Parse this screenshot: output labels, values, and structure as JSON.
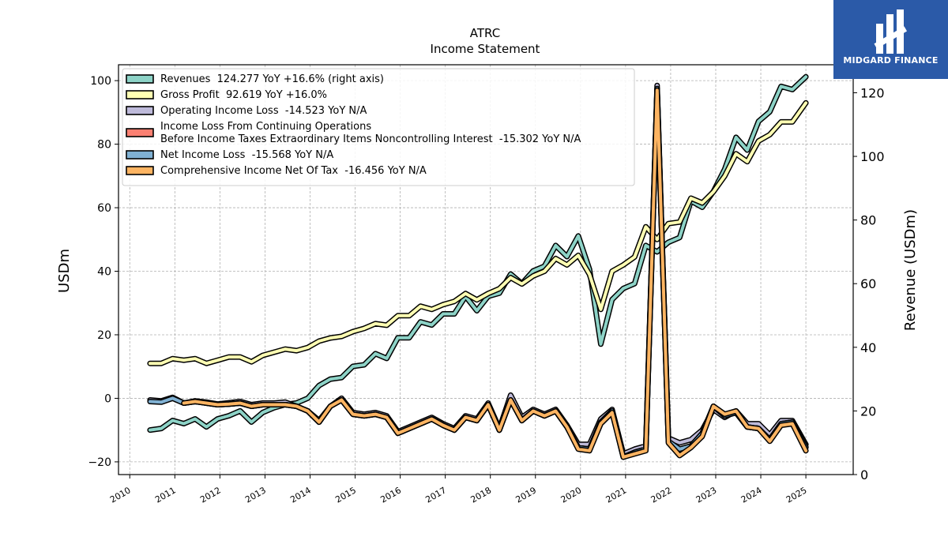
{
  "logo": {
    "text": "MIDGARD FINANCE",
    "color": "#2b5aa8"
  },
  "chart_data": {
    "type": "line",
    "title": "ATRC",
    "subtitle": "Income Statement",
    "ylabel": "USDm",
    "y2label": "Revenue (USDm)",
    "ylim": [
      -24,
      105
    ],
    "y2lim": [
      0,
      128.8
    ],
    "yticks": [
      -20,
      0,
      20,
      40,
      60,
      80,
      100
    ],
    "y2ticks": [
      0,
      20,
      40,
      60,
      80,
      100,
      120
    ],
    "xlim": [
      2009.75,
      2026.05
    ],
    "xticks": [
      2010,
      2011,
      2012,
      2013,
      2014,
      2015,
      2016,
      2017,
      2018,
      2019,
      2020,
      2021,
      2022,
      2023,
      2024,
      2025
    ],
    "xtick_labels": [
      "2010",
      "2011",
      "2012",
      "2013",
      "2014",
      "2015",
      "2016",
      "2017",
      "2018",
      "2019",
      "2020",
      "2021",
      "2022",
      "2023",
      "2024",
      "2025"
    ],
    "grid": true,
    "legend_position": "top-left",
    "series": [
      {
        "name": "Revenues  124.277 YoY +16.6% (right axis)",
        "axis": "right",
        "color": "#8dd3c7",
        "x": [
          2010.45,
          2010.7,
          2010.95,
          2011.2,
          2011.45,
          2011.7,
          2011.95,
          2012.2,
          2012.45,
          2012.7,
          2012.95,
          2013.2,
          2013.45,
          2013.7,
          2013.95,
          2014.2,
          2014.45,
          2014.7,
          2014.95,
          2015.2,
          2015.45,
          2015.7,
          2015.95,
          2016.2,
          2016.45,
          2016.7,
          2016.95,
          2017.2,
          2017.45,
          2017.7,
          2017.95,
          2018.2,
          2018.45,
          2018.7,
          2018.95,
          2019.2,
          2019.45,
          2019.7,
          2019.95,
          2020.2,
          2020.45,
          2020.7,
          2020.95,
          2021.2,
          2021.45,
          2021.7,
          2021.95,
          2022.2,
          2022.45,
          2022.7,
          2022.95,
          2023.2,
          2023.45,
          2023.7,
          2023.95,
          2024.2,
          2024.45,
          2024.7,
          2025.0
        ],
        "values": [
          14,
          14.5,
          17,
          16,
          17.5,
          15,
          17.5,
          18.5,
          20,
          16.5,
          19.5,
          21,
          22,
          22.5,
          24,
          28,
          30,
          30.5,
          34,
          34.5,
          38,
          36.5,
          43,
          43,
          48,
          47,
          50.5,
          50.5,
          56,
          51.5,
          56,
          57,
          63,
          60,
          64,
          65.5,
          72,
          68.5,
          75,
          64.5,
          41,
          55,
          58.5,
          60,
          72,
          70,
          73,
          74.5,
          86,
          84,
          89,
          96,
          106,
          102,
          111,
          114,
          122,
          121,
          125
        ]
      },
      {
        "name": "Gross Profit  92.619 YoY +16.0%",
        "axis": "left",
        "color": "#ffffb3",
        "x": [
          2010.45,
          2010.7,
          2010.95,
          2011.2,
          2011.45,
          2011.7,
          2011.95,
          2012.2,
          2012.45,
          2012.7,
          2012.95,
          2013.2,
          2013.45,
          2013.7,
          2013.95,
          2014.2,
          2014.45,
          2014.7,
          2014.95,
          2015.2,
          2015.45,
          2015.7,
          2015.95,
          2016.2,
          2016.45,
          2016.7,
          2016.95,
          2017.2,
          2017.45,
          2017.7,
          2017.95,
          2018.2,
          2018.45,
          2018.7,
          2018.95,
          2019.2,
          2019.45,
          2019.7,
          2019.95,
          2020.2,
          2020.45,
          2020.7,
          2020.95,
          2021.2,
          2021.45,
          2021.7,
          2021.95,
          2022.2,
          2022.45,
          2022.7,
          2022.95,
          2023.2,
          2023.45,
          2023.7,
          2023.95,
          2024.2,
          2024.45,
          2024.7,
          2025.0
        ],
        "values": [
          11,
          11,
          12.5,
          12,
          12.5,
          11,
          12,
          13,
          13,
          11.5,
          13.5,
          14.5,
          15.5,
          15,
          16,
          18,
          19,
          19.5,
          21,
          22,
          23.5,
          23,
          26,
          26,
          29,
          28,
          29.5,
          30.5,
          33,
          31,
          33,
          34.5,
          38,
          36,
          38.5,
          40,
          44,
          42,
          45,
          39,
          28,
          40,
          42,
          44.5,
          54,
          50,
          55,
          55.5,
          63,
          61.5,
          65,
          70,
          77,
          74.5,
          81,
          83,
          87,
          87,
          93
        ]
      },
      {
        "name": "Operating Income Loss  -14.523 YoY N/A",
        "axis": "left",
        "color": "#bebada",
        "x": [
          2010.45,
          2010.7,
          2010.95,
          2011.2,
          2011.45,
          2011.7,
          2011.95,
          2012.2,
          2012.45,
          2012.7,
          2012.95,
          2013.2,
          2013.45,
          2013.7,
          2013.95,
          2014.2,
          2014.45,
          2014.7,
          2014.95,
          2015.2,
          2015.45,
          2015.7,
          2015.95,
          2016.2,
          2016.45,
          2016.7,
          2016.95,
          2017.2,
          2017.45,
          2017.7,
          2017.95,
          2018.2,
          2018.45,
          2018.7,
          2018.95,
          2019.2,
          2019.45,
          2019.7,
          2019.95,
          2020.2,
          2020.45,
          2020.7,
          2020.95,
          2021.2,
          2021.45,
          2021.7,
          2021.95,
          2022.2,
          2022.45,
          2022.7,
          2022.95,
          2023.2,
          2023.45,
          2023.7,
          2023.95,
          2024.2,
          2024.45,
          2024.7,
          2025.0
        ],
        "values": [
          -0.5,
          -0.8,
          0.3,
          -1.5,
          -0.8,
          -1.2,
          -1.8,
          -1.4,
          -1,
          -2,
          -1.5,
          -1.5,
          -1.2,
          -2.5,
          -4,
          -7,
          -2.5,
          0,
          -4.5,
          -5,
          -4.5,
          -5.5,
          -10.5,
          -9,
          -7.5,
          -6,
          -8,
          -9.5,
          -5.5,
          -6.5,
          -1.5,
          -9.5,
          1,
          -6,
          -3.5,
          -5,
          -3.5,
          -8.5,
          -14.5,
          -14.5,
          -6.5,
          -3.5,
          -17.5,
          -16,
          -15,
          98.5,
          -12.5,
          -14,
          -13,
          -10,
          -3.5,
          -6,
          -4,
          -8,
          -8,
          -11.5,
          -7,
          -7,
          -14.5
        ]
      },
      {
        "name": "Income Loss From Continuing Operations\nBefore Income Taxes Extraordinary Items Noncontrolling Interest  -15.302 YoY N/A",
        "axis": "left",
        "color": "#fb8072",
        "x": [
          2011.2,
          2011.45,
          2011.7,
          2011.95,
          2012.2,
          2012.45,
          2012.7,
          2012.95,
          2013.2,
          2013.45,
          2013.7,
          2013.95,
          2014.2,
          2014.45,
          2014.7,
          2014.95,
          2015.2,
          2015.45,
          2015.7,
          2015.95,
          2016.2,
          2016.45,
          2016.7,
          2016.95,
          2017.2,
          2017.45,
          2017.7,
          2017.95,
          2018.2,
          2018.45,
          2018.7,
          2018.95,
          2019.2,
          2019.45,
          2019.7,
          2019.95,
          2020.2,
          2020.45,
          2020.7,
          2020.95,
          2021.2,
          2021.45,
          2021.7,
          2021.95,
          2022.2,
          2022.45,
          2022.7,
          2022.95,
          2023.2,
          2023.45,
          2023.7,
          2023.95,
          2024.2,
          2024.45,
          2024.7,
          2025.0
        ],
        "values": [
          -1.5,
          -1,
          -1.5,
          -2,
          -1.8,
          -1.5,
          -2.5,
          -2,
          -2,
          -2,
          -2.5,
          -4,
          -7.5,
          -2.5,
          -0.5,
          -5,
          -5.5,
          -5,
          -6,
          -11,
          -9.5,
          -8,
          -6.5,
          -8.5,
          -10,
          -6,
          -7,
          -2,
          -10,
          -0.5,
          -7,
          -4,
          -5.5,
          -4,
          -9,
          -15.5,
          -16,
          -7.5,
          -4,
          -18.5,
          -17,
          -16,
          97.5,
          -13.5,
          -17.5,
          -15,
          -11,
          -2.5,
          -5.5,
          -4.5,
          -9,
          -9.5,
          -13,
          -8,
          -7.5,
          -15.3
        ]
      },
      {
        "name": "Net Income Loss  -15.568 YoY N/A",
        "axis": "left",
        "color": "#80b1d3",
        "x": [
          2010.45,
          2010.7,
          2010.95,
          2011.2,
          2011.45,
          2011.7,
          2011.95,
          2012.2,
          2012.45,
          2012.7,
          2012.95,
          2013.2,
          2013.45,
          2013.7,
          2013.95,
          2014.2,
          2014.45,
          2014.7,
          2014.95,
          2015.2,
          2015.45,
          2015.7,
          2015.95,
          2016.2,
          2016.45,
          2016.7,
          2016.95,
          2017.2,
          2017.45,
          2017.7,
          2017.95,
          2018.2,
          2018.45,
          2018.7,
          2018.95,
          2019.2,
          2019.45,
          2019.7,
          2019.95,
          2020.2,
          2020.45,
          2020.7,
          2020.95,
          2021.2,
          2021.45,
          2021.7,
          2021.95,
          2022.2,
          2022.45,
          2022.7,
          2022.95,
          2023.2,
          2023.45,
          2023.7,
          2023.95,
          2024.2,
          2024.45,
          2024.7,
          2025.0
        ],
        "values": [
          -1,
          -1.2,
          0,
          -1.5,
          -1,
          -1.5,
          -2,
          -1.8,
          -1.5,
          -2.5,
          -2,
          -2,
          -2,
          -2.5,
          -4,
          -7.5,
          -2.5,
          -0.5,
          -5,
          -5.5,
          -5,
          -6,
          -11,
          -9.5,
          -8,
          -6.5,
          -8.5,
          -10,
          -6,
          -7,
          -2,
          -10,
          -0.5,
          -7,
          -4,
          -5.5,
          -4,
          -9,
          -15.5,
          -16,
          -7.5,
          -4,
          -18.5,
          -17,
          -16,
          97.5,
          -13.5,
          -16,
          -15,
          -11,
          -2.5,
          -5.5,
          -4.5,
          -9,
          -9.5,
          -13,
          -8,
          -7.5,
          -15.5
        ]
      },
      {
        "name": "Comprehensive Income Net Of Tax  -16.456 YoY N/A",
        "axis": "left",
        "color": "#fdb462",
        "x": [
          2011.2,
          2011.45,
          2011.7,
          2011.95,
          2012.2,
          2012.45,
          2012.7,
          2012.95,
          2013.2,
          2013.45,
          2013.7,
          2013.95,
          2014.2,
          2014.45,
          2014.7,
          2014.95,
          2015.2,
          2015.45,
          2015.7,
          2015.95,
          2016.2,
          2016.45,
          2016.7,
          2016.95,
          2017.2,
          2017.45,
          2017.7,
          2017.95,
          2018.2,
          2018.45,
          2018.7,
          2018.95,
          2019.2,
          2019.45,
          2019.7,
          2019.95,
          2020.2,
          2020.45,
          2020.7,
          2020.95,
          2021.2,
          2021.45,
          2021.7,
          2021.95,
          2022.2,
          2022.45,
          2022.7,
          2022.95,
          2023.2,
          2023.45,
          2023.7,
          2023.95,
          2024.2,
          2024.45,
          2024.7,
          2025.0
        ],
        "values": [
          -1.5,
          -1,
          -1.5,
          -2,
          -1.8,
          -1.5,
          -2.5,
          -2,
          -2,
          -2,
          -2.5,
          -4,
          -7.5,
          -2.5,
          -0.5,
          -5,
          -5.5,
          -5,
          -6,
          -11,
          -9.5,
          -8,
          -6.5,
          -8.5,
          -10,
          -6,
          -7,
          -2,
          -10,
          -0.5,
          -7,
          -4,
          -5.5,
          -4,
          -9,
          -16,
          -16.5,
          -8,
          -4.5,
          -18.5,
          -17.5,
          -16.5,
          97,
          -14,
          -18,
          -15.5,
          -12,
          -2.5,
          -5,
          -4,
          -9,
          -9.5,
          -13.5,
          -8.5,
          -8,
          -16.5
        ]
      }
    ]
  }
}
